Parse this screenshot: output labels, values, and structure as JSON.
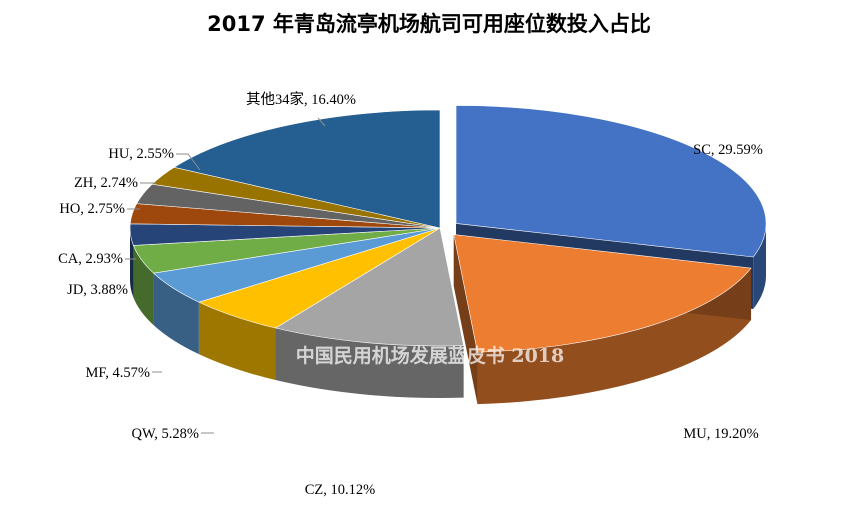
{
  "chart_data": {
    "type": "pie",
    "title": "2017 年青岛流亭机场航司可用座位数投入占比",
    "watermark": "中国民用机场发展蓝皮书 2018",
    "slices": [
      {
        "label": "SC",
        "value": 29.59,
        "display": "SC, 29.59%",
        "color": "#4472c4"
      },
      {
        "label": "MU",
        "value": 19.2,
        "display": "MU, 19.20%",
        "color": "#ed7d31"
      },
      {
        "label": "CZ",
        "value": 10.12,
        "display": "CZ, 10.12%",
        "color": "#a5a5a5"
      },
      {
        "label": "QW",
        "value": 5.28,
        "display": "QW, 5.28%",
        "color": "#ffc000"
      },
      {
        "label": "MF",
        "value": 4.57,
        "display": "MF, 4.57%",
        "color": "#5b9bd5"
      },
      {
        "label": "JD",
        "value": 3.88,
        "display": "JD, 3.88%",
        "color": "#70ad47"
      },
      {
        "label": "CA",
        "value": 2.93,
        "display": "CA, 2.93%",
        "color": "#264478"
      },
      {
        "label": "HO",
        "value": 2.75,
        "display": "HO, 2.75%",
        "color": "#9e480e"
      },
      {
        "label": "ZH",
        "value": 2.74,
        "display": "ZH, 2.74%",
        "color": "#636363"
      },
      {
        "label": "HU",
        "value": 2.55,
        "display": "HU, 2.55%",
        "color": "#997300"
      },
      {
        "label": "其他34家",
        "value": 16.4,
        "display": "其他34家, 16.40%",
        "color": "#255e91"
      }
    ]
  }
}
